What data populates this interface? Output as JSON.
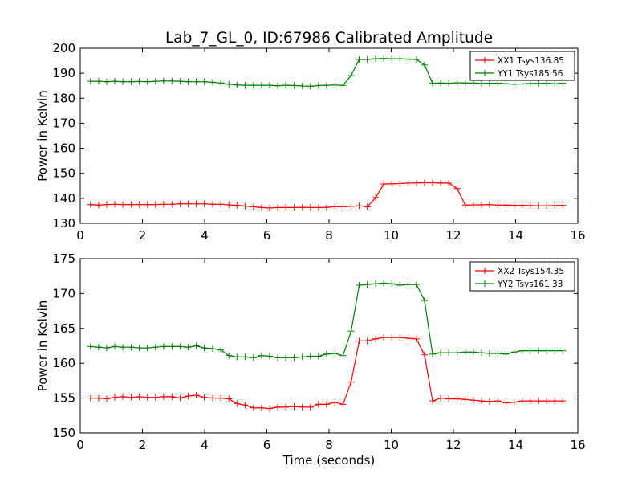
{
  "figure": {
    "title": "Lab_7_GL_0, ID:67986 Calibrated Amplitude",
    "xlabel": "Time (seconds)"
  },
  "colors": {
    "XX": "#ff0000",
    "YY": "#008000"
  },
  "chart_data": [
    {
      "type": "line",
      "title": "Lab_7_GL_0, ID:67986 Calibrated Amplitude",
      "xlabel": "",
      "ylabel": "Power in Kelvin",
      "xlim": [
        0,
        16
      ],
      "ylim": [
        130,
        200
      ],
      "xticks": [
        0,
        2,
        4,
        6,
        8,
        10,
        12,
        14,
        16
      ],
      "yticks": [
        130,
        140,
        150,
        160,
        170,
        180,
        190,
        200
      ],
      "grid": false,
      "legend_position": "top-right",
      "x": [
        0.33,
        0.59,
        0.85,
        1.11,
        1.37,
        1.64,
        1.9,
        2.16,
        2.42,
        2.68,
        2.95,
        3.21,
        3.47,
        3.73,
        3.99,
        4.26,
        4.52,
        4.78,
        5.04,
        5.3,
        5.57,
        5.83,
        6.09,
        6.35,
        6.61,
        6.88,
        7.14,
        7.4,
        7.66,
        7.92,
        8.19,
        8.45,
        8.71,
        8.97,
        9.23,
        9.5,
        9.76,
        10.02,
        10.28,
        10.54,
        10.81,
        11.07,
        11.33,
        11.59,
        11.85,
        12.12,
        12.38,
        12.64,
        12.9,
        13.16,
        13.43,
        13.69,
        13.95,
        14.21,
        14.47,
        14.74,
        15.0,
        15.26,
        15.52
      ],
      "series": [
        {
          "name": "XX1 Tsys136.85",
          "color": "#ff0000",
          "values": [
            137.5,
            137.3,
            137.5,
            137.6,
            137.5,
            137.5,
            137.5,
            137.5,
            137.5,
            137.6,
            137.6,
            137.8,
            137.8,
            137.8,
            137.8,
            137.6,
            137.6,
            137.4,
            137.2,
            136.9,
            136.6,
            136.3,
            136.1,
            136.3,
            136.3,
            136.3,
            136.4,
            136.3,
            136.3,
            136.4,
            136.6,
            136.6,
            136.8,
            137.0,
            136.6,
            140.3,
            145.7,
            145.8,
            145.9,
            146.1,
            146.1,
            146.2,
            146.2,
            146.1,
            146.1,
            143.9,
            137.3,
            137.4,
            137.4,
            137.5,
            137.3,
            137.3,
            137.2,
            137.2,
            137.1,
            137.0,
            137.0,
            137.1,
            137.2
          ]
        },
        {
          "name": "YY1 Tsys185.56",
          "color": "#008000",
          "values": [
            186.8,
            186.8,
            186.6,
            186.8,
            186.6,
            186.6,
            186.7,
            186.6,
            186.8,
            186.9,
            186.9,
            186.8,
            186.6,
            186.6,
            186.6,
            186.4,
            186.1,
            185.6,
            185.3,
            185.2,
            185.2,
            185.2,
            185.2,
            185.0,
            185.2,
            185.1,
            184.9,
            184.8,
            185.1,
            185.2,
            185.3,
            185.1,
            189.1,
            195.5,
            195.5,
            195.8,
            195.9,
            195.8,
            195.8,
            195.6,
            195.5,
            193.3,
            186.0,
            186.1,
            186.0,
            186.2,
            186.1,
            186.1,
            185.9,
            186.0,
            186.0,
            185.8,
            185.6,
            185.7,
            185.9,
            185.9,
            186.0,
            185.8,
            186.0
          ]
        }
      ]
    },
    {
      "type": "line",
      "title": "",
      "xlabel": "Time (seconds)",
      "ylabel": "Power in Kelvin",
      "xlim": [
        0,
        16
      ],
      "ylim": [
        150,
        175
      ],
      "xticks": [
        0,
        2,
        4,
        6,
        8,
        10,
        12,
        14,
        16
      ],
      "yticks": [
        150,
        155,
        160,
        165,
        170,
        175
      ],
      "grid": false,
      "legend_position": "top-right",
      "x": [
        0.33,
        0.59,
        0.85,
        1.11,
        1.37,
        1.64,
        1.9,
        2.16,
        2.42,
        2.68,
        2.95,
        3.21,
        3.47,
        3.73,
        3.99,
        4.26,
        4.52,
        4.78,
        5.04,
        5.3,
        5.57,
        5.83,
        6.09,
        6.35,
        6.61,
        6.88,
        7.14,
        7.4,
        7.66,
        7.92,
        8.19,
        8.45,
        8.71,
        8.97,
        9.23,
        9.5,
        9.76,
        10.02,
        10.28,
        10.54,
        10.81,
        11.07,
        11.33,
        11.59,
        11.85,
        12.12,
        12.38,
        12.64,
        12.9,
        13.16,
        13.43,
        13.69,
        13.95,
        14.21,
        14.47,
        14.74,
        15.0,
        15.26,
        15.52
      ],
      "series": [
        {
          "name": "XX2 Tsys154.35",
          "color": "#ff0000",
          "values": [
            155.0,
            155.0,
            154.9,
            155.1,
            155.2,
            155.1,
            155.2,
            155.1,
            155.1,
            155.2,
            155.2,
            155.0,
            155.3,
            155.4,
            155.1,
            155.0,
            155.0,
            154.9,
            154.2,
            154.0,
            153.6,
            153.6,
            153.5,
            153.7,
            153.7,
            153.8,
            153.7,
            153.7,
            154.1,
            154.1,
            154.4,
            154.1,
            157.3,
            163.2,
            163.2,
            163.5,
            163.7,
            163.7,
            163.7,
            163.6,
            163.5,
            161.2,
            154.6,
            155.0,
            154.9,
            154.9,
            154.8,
            154.7,
            154.6,
            154.5,
            154.6,
            154.3,
            154.4,
            154.6,
            154.6,
            154.6,
            154.6,
            154.6,
            154.6
          ]
        },
        {
          "name": "YY2 Tsys161.33",
          "color": "#008000",
          "values": [
            162.4,
            162.3,
            162.2,
            162.4,
            162.3,
            162.3,
            162.2,
            162.2,
            162.3,
            162.4,
            162.4,
            162.4,
            162.3,
            162.5,
            162.2,
            162.1,
            161.9,
            161.1,
            160.9,
            160.9,
            160.8,
            161.1,
            161.0,
            160.8,
            160.8,
            160.8,
            160.9,
            161.0,
            161.0,
            161.3,
            161.4,
            161.1,
            164.6,
            171.2,
            171.3,
            171.4,
            171.5,
            171.4,
            171.2,
            171.3,
            171.3,
            169.0,
            161.3,
            161.5,
            161.5,
            161.5,
            161.6,
            161.6,
            161.5,
            161.4,
            161.4,
            161.3,
            161.6,
            161.8,
            161.8,
            161.8,
            161.8,
            161.8,
            161.8
          ]
        }
      ]
    }
  ]
}
